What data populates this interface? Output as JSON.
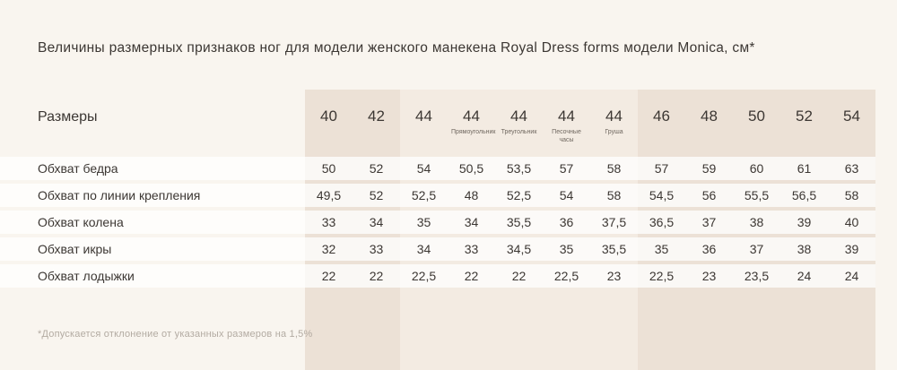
{
  "chart_data": {
    "type": "table",
    "title": "Величины размерных признаков ног для модели женского манекена Royal Dress forms модели Monica, см*",
    "row_header_label": "Размеры",
    "size_columns": [
      {
        "size": "40",
        "sublabel": "",
        "band": 1
      },
      {
        "size": "42",
        "sublabel": "",
        "band": 1
      },
      {
        "size": "44",
        "sublabel": "",
        "band": 2
      },
      {
        "size": "44",
        "sublabel": "Прямоугольник",
        "band": 2
      },
      {
        "size": "44",
        "sublabel": "Треугольник",
        "band": 2
      },
      {
        "size": "44",
        "sublabel": "Песочные часы",
        "band": 2
      },
      {
        "size": "44",
        "sublabel": "Груша",
        "band": 2
      },
      {
        "size": "46",
        "sublabel": "",
        "band": 3
      },
      {
        "size": "48",
        "sublabel": "",
        "band": 3
      },
      {
        "size": "50",
        "sublabel": "",
        "band": 3
      },
      {
        "size": "52",
        "sublabel": "",
        "band": 3
      },
      {
        "size": "54",
        "sublabel": "",
        "band": 3
      }
    ],
    "rows": [
      {
        "label": "Обхват бедра",
        "values": [
          "50",
          "52",
          "54",
          "50,5",
          "53,5",
          "57",
          "58",
          "57",
          "59",
          "60",
          "61",
          "63"
        ]
      },
      {
        "label": "Обхват по линии крепления",
        "values": [
          "49,5",
          "52",
          "52,5",
          "48",
          "52,5",
          "54",
          "58",
          "54,5",
          "56",
          "55,5",
          "56,5",
          "58"
        ]
      },
      {
        "label": "Обхват колена",
        "values": [
          "33",
          "34",
          "35",
          "34",
          "35,5",
          "36",
          "37,5",
          "36,5",
          "37",
          "38",
          "39",
          "40"
        ]
      },
      {
        "label": "Обхват икры",
        "values": [
          "32",
          "33",
          "34",
          "33",
          "34,5",
          "35",
          "35,5",
          "35",
          "36",
          "37",
          "38",
          "39"
        ]
      },
      {
        "label": "Обхват лодыжки",
        "values": [
          "22",
          "22",
          "22,5",
          "22",
          "22",
          "22,5",
          "23",
          "22,5",
          "23",
          "23,5",
          "24",
          "24"
        ]
      }
    ],
    "footnote": "*Допускается отклонение от указанных размеров на 1,5%"
  },
  "colors": {
    "page_bg": "#f9f5ef",
    "band_dark": "#ece1d6",
    "band_light": "#f3ebe2",
    "row_stripe": "rgba(255,255,255,0.75)",
    "text": "#3c3733",
    "sublabel_text": "#6f675f",
    "footnote_text": "#b3aba2"
  }
}
